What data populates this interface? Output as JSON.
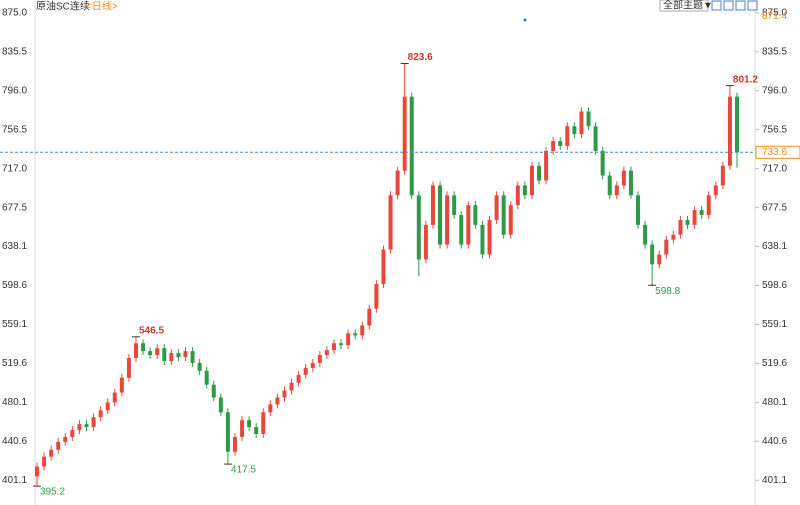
{
  "chart_data": {
    "type": "candlestick",
    "title": "原油SC连续",
    "subtitle": "<日线>",
    "button": "全部主题▼",
    "up_color": "#e8483c",
    "down_color": "#2e9a46",
    "ylim": [
      376,
      888
    ],
    "yticks": [
      {
        "value": 875,
        "label": "875.0"
      },
      835.5,
      {
        "value": 796,
        "label": "796.0"
      },
      756.5,
      {
        "value": 717,
        "label": "717.0"
      },
      677.5,
      638.1,
      598.6,
      559.1,
      519.6,
      480.1,
      440.6,
      401.1
    ],
    "last_price": 733.6,
    "reference_value": 871.4,
    "open": [
      405,
      415,
      425,
      432,
      440,
      445,
      452,
      458,
      455,
      465,
      472,
      480,
      490,
      505,
      525,
      540,
      532,
      528,
      535,
      522,
      530,
      526,
      532,
      520,
      512,
      498,
      485,
      470,
      430,
      445,
      462,
      455,
      448,
      470,
      478,
      485,
      492,
      500,
      508,
      515,
      520,
      528,
      533,
      540,
      538,
      550,
      548,
      558,
      575,
      600,
      635,
      690,
      715,
      790,
      690,
      625,
      660,
      700,
      640,
      690,
      670,
      640,
      680,
      660,
      630,
      665,
      690,
      650,
      680,
      700,
      690,
      720,
      705,
      735,
      745,
      740,
      760,
      752,
      775,
      760,
      735,
      710,
      690,
      700,
      715,
      690,
      660,
      640,
      620,
      630,
      645,
      650,
      665,
      660,
      675,
      670,
      690,
      700,
      720,
      790
    ],
    "high": [
      419,
      429,
      436,
      444,
      449,
      456,
      462,
      462,
      469,
      476,
      484,
      494,
      509,
      529,
      546.5,
      544,
      536,
      539,
      539,
      534,
      534,
      536,
      536,
      524,
      516,
      502,
      489,
      474,
      449,
      466,
      466,
      459,
      474,
      482,
      489,
      496,
      504,
      512,
      519,
      524,
      532,
      537,
      544,
      544,
      554,
      554,
      562,
      579,
      604,
      639,
      694,
      719,
      823.6,
      794,
      694,
      664,
      704,
      704,
      694,
      694,
      674,
      684,
      684,
      664,
      669,
      694,
      694,
      684,
      704,
      704,
      724,
      724,
      739,
      749,
      749,
      764,
      764,
      779,
      779,
      764,
      739,
      714,
      704,
      719,
      719,
      694,
      664,
      644,
      634,
      649,
      654,
      669,
      669,
      679,
      679,
      694,
      704,
      724,
      801.2,
      794
    ],
    "low": [
      395.2,
      411,
      421,
      428,
      436,
      441,
      448,
      451,
      451,
      461,
      468,
      476,
      486,
      501,
      521,
      528,
      524,
      524,
      518,
      518,
      522,
      522,
      516,
      508,
      494,
      481,
      466,
      417.5,
      426,
      441,
      451,
      444,
      444,
      466,
      474,
      481,
      488,
      496,
      504,
      511,
      516,
      524,
      529,
      534,
      534,
      544,
      544,
      554,
      571,
      596,
      631,
      686,
      711,
      686,
      608,
      621,
      656,
      636,
      636,
      666,
      636,
      636,
      656,
      626,
      626,
      661,
      646,
      646,
      676,
      686,
      686,
      701,
      701,
      731,
      736,
      736,
      748,
      748,
      756,
      731,
      706,
      686,
      686,
      696,
      686,
      656,
      636,
      598.8,
      616,
      626,
      641,
      646,
      656,
      656,
      666,
      666,
      686,
      696,
      716,
      718
    ],
    "close": [
      415,
      425,
      432,
      440,
      445,
      452,
      458,
      455,
      465,
      472,
      480,
      490,
      505,
      525,
      540,
      532,
      528,
      535,
      522,
      530,
      526,
      532,
      520,
      512,
      498,
      485,
      470,
      430,
      445,
      462,
      455,
      448,
      470,
      478,
      485,
      492,
      500,
      508,
      515,
      520,
      528,
      533,
      540,
      538,
      550,
      548,
      558,
      575,
      600,
      635,
      690,
      715,
      790,
      690,
      625,
      660,
      700,
      640,
      690,
      670,
      640,
      680,
      660,
      630,
      665,
      690,
      650,
      680,
      700,
      690,
      720,
      705,
      735,
      745,
      740,
      760,
      752,
      775,
      760,
      735,
      710,
      690,
      700,
      715,
      690,
      660,
      640,
      620,
      630,
      645,
      650,
      665,
      660,
      675,
      670,
      690,
      700,
      720,
      790,
      733.6
    ],
    "high_value_labels": [
      null,
      null,
      null,
      null,
      null,
      null,
      null,
      null,
      null,
      null,
      null,
      null,
      null,
      null,
      "546.5",
      null,
      null,
      null,
      null,
      null,
      null,
      null,
      null,
      null,
      null,
      null,
      null,
      null,
      null,
      null,
      null,
      null,
      null,
      null,
      null,
      null,
      null,
      null,
      null,
      null,
      null,
      null,
      null,
      null,
      null,
      null,
      null,
      null,
      null,
      null,
      null,
      null,
      "823.6",
      null,
      null,
      null,
      null,
      null,
      null,
      null,
      null,
      null,
      null,
      null,
      null,
      null,
      null,
      null,
      null,
      null,
      null,
      null,
      null,
      null,
      null,
      null,
      null,
      null,
      null,
      null,
      null,
      null,
      null,
      null,
      null,
      null,
      null,
      null,
      null,
      null,
      null,
      null,
      null,
      null,
      null,
      null,
      null,
      null,
      "801.2",
      null
    ],
    "low_value_labels": [
      "395.2",
      null,
      null,
      null,
      null,
      null,
      null,
      null,
      null,
      null,
      null,
      null,
      null,
      null,
      null,
      null,
      null,
      null,
      null,
      null,
      null,
      null,
      null,
      null,
      null,
      null,
      null,
      "417.5",
      null,
      null,
      null,
      null,
      null,
      null,
      null,
      null,
      null,
      null,
      null,
      null,
      null,
      null,
      null,
      null,
      null,
      null,
      null,
      null,
      null,
      null,
      null,
      null,
      null,
      null,
      null,
      null,
      null,
      null,
      null,
      null,
      null,
      null,
      null,
      null,
      null,
      null,
      null,
      null,
      null,
      null,
      null,
      null,
      null,
      null,
      null,
      null,
      null,
      null,
      null,
      null,
      null,
      null,
      null,
      null,
      null,
      null,
      null,
      "598.8",
      null,
      null,
      null,
      null,
      null,
      null,
      null,
      null,
      null,
      null,
      null,
      null
    ]
  }
}
